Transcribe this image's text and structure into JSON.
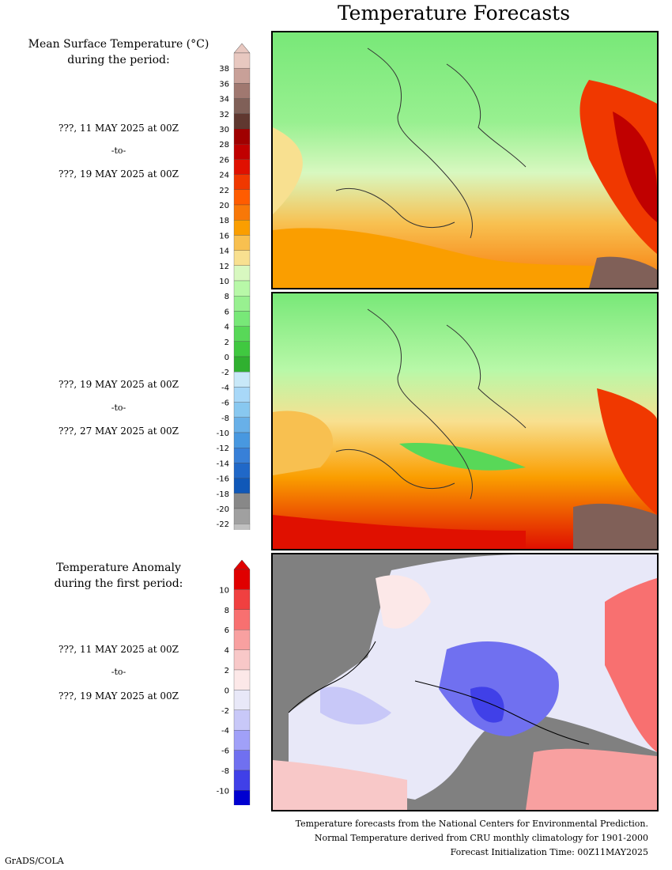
{
  "header": {
    "title": "Temperature Forecasts"
  },
  "mean_legend": {
    "title_line1": "Mean Surface Temperature (°C)",
    "title_line2": "during the period:",
    "ticks": [
      "38",
      "36",
      "34",
      "32",
      "30",
      "28",
      "26",
      "24",
      "22",
      "20",
      "18",
      "16",
      "14",
      "12",
      "10",
      "8",
      "6",
      "4",
      "2",
      "0",
      "-2",
      "-4",
      "-6",
      "-8",
      "-10",
      "-12",
      "-14",
      "-16",
      "-18",
      "-20",
      "-22"
    ],
    "colors": [
      "#e8c8c0",
      "#c8a098",
      "#a07870",
      "#806058",
      "#603830",
      "#a00000",
      "#c00000",
      "#e01000",
      "#f03800",
      "#ff5c00",
      "#f87808",
      "#fa9e00",
      "#f8c050",
      "#f8e090",
      "#d8f8c0",
      "#b8f8a8",
      "#98f090",
      "#78e878",
      "#58d858",
      "#40c840",
      "#30b030",
      "#c8e8f8",
      "#a8d8f8",
      "#88c8f0",
      "#68b0e8",
      "#4898e0",
      "#3880d8",
      "#2068c8",
      "#1058b8",
      "#888888",
      "#a0a0a0",
      "#c0c0c0",
      "#d8d8d8"
    ]
  },
  "period1": {
    "start": "???, 11 MAY 2025 at 00Z",
    "sep": "-to-",
    "end": "???, 19 MAY 2025 at 00Z"
  },
  "period2": {
    "start": "???, 19 MAY 2025 at 00Z",
    "sep": "-to-",
    "end": "???, 27 MAY 2025 at 00Z"
  },
  "anomaly_legend": {
    "title_line1": "Temperature Anomaly",
    "title_line2": "during the first period:",
    "ticks": [
      "10",
      "8",
      "6",
      "4",
      "2",
      "0",
      "-2",
      "-4",
      "-6",
      "-8",
      "-10"
    ],
    "colors": [
      "#e00000",
      "#f04040",
      "#f87070",
      "#f8a0a0",
      "#f8c8c8",
      "#fce8e8",
      "#e8e8f8",
      "#c8c8f8",
      "#a0a0f8",
      "#7070f0",
      "#4040e8",
      "#0000d0"
    ]
  },
  "period3": {
    "start": "???, 11 MAY 2025 at 00Z",
    "sep": "-to-",
    "end": "???, 19 MAY 2025 at 00Z"
  },
  "footer": {
    "line1": "Temperature forecasts from the National Centers for Environmental Prediction.",
    "line2": "Normal Temperature derived from CRU monthly climatology for 1901-2000",
    "line3": "Forecast Initialization Time: 00Z11MAY2025"
  },
  "credit": "GrADS/COLA"
}
